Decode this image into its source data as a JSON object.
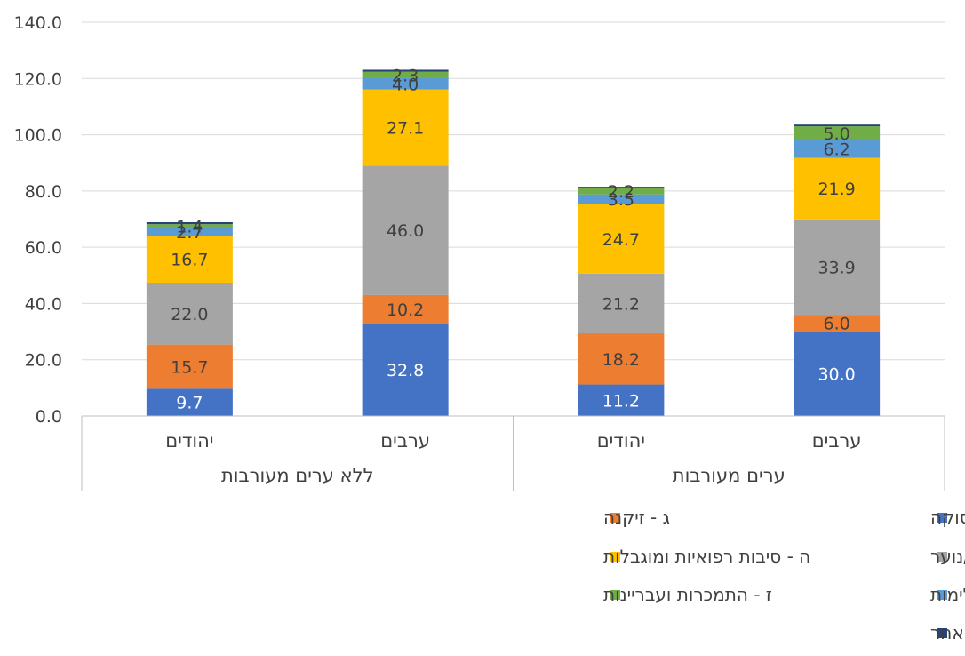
{
  "chart_data": {
    "type": "bar",
    "stacked": true,
    "title": "",
    "xlabel": "",
    "ylabel": "",
    "ylim": [
      0,
      140
    ],
    "ytick_step": 20,
    "ytick_labels": [
      "0.0",
      "20.0",
      "40.0",
      "60.0",
      "80.0",
      "100.0",
      "120.0",
      "140.0"
    ],
    "grid": true,
    "legend_placement": "bottom",
    "groups": [
      {
        "name": "ללא ערים מעורבות",
        "categories": [
          "יהודים",
          "ערבים"
        ]
      },
      {
        "name": "ערים מעורבות",
        "categories": [
          "יהודים",
          "ערבים"
        ]
      }
    ],
    "categories": [
      "יהודים",
      "ערבים",
      "יהודים",
      "ערבים"
    ],
    "series": [
      {
        "name": "ב - עוני, קשיי הכנסה ותעסוקה",
        "color": "#4472C4",
        "values": [
          9.7,
          32.8,
          11.2,
          30.0
        ],
        "labels": [
          "9.7",
          "32.8",
          "11.2",
          "30.0"
        ],
        "label_color": "#ffffff"
      },
      {
        "name": "ג - זיקנה",
        "color": "#ED7D31",
        "values": [
          15.7,
          10.2,
          18.2,
          6.0
        ],
        "labels": [
          "15.7",
          "10.2",
          "18.2",
          "6.0"
        ],
        "label_color": "#404040"
      },
      {
        "name": "ד - תפקוד לקוי של הורים או של ילדים/נוער",
        "color": "#A5A5A5",
        "values": [
          22.0,
          46.0,
          21.2,
          33.9
        ],
        "labels": [
          "22.0",
          "46.0",
          "21.2",
          "33.9"
        ],
        "label_color": "#404040"
      },
      {
        "name": "ה - סיבות רפואיות ומוגבלות",
        "color": "#FFC000",
        "values": [
          16.7,
          27.1,
          24.7,
          21.9
        ],
        "labels": [
          "16.7",
          "27.1",
          "24.7",
          "21.9"
        ],
        "label_color": "#404040"
      },
      {
        "name": "ו - אלימות",
        "color": "#5B9BD5",
        "values": [
          2.7,
          4.0,
          3.5,
          6.2
        ],
        "labels": [
          "2.7",
          "4.0",
          "3.5",
          "6.2"
        ],
        "label_color": "#404040"
      },
      {
        "name": "ז - התמכרות ועבריינות",
        "color": "#70AD47",
        "values": [
          1.4,
          2.3,
          2.2,
          5.0
        ],
        "labels": [
          "1.4",
          "2.3",
          "2.2",
          "5.0"
        ],
        "label_color": "#404040"
      },
      {
        "name": "ט - בבדיקה, אחר",
        "color": "#264478",
        "values": [
          0.7,
          0.7,
          0.5,
          0.6
        ],
        "labels": [
          "",
          "",
          "",
          ""
        ],
        "label_color": "#404040"
      }
    ]
  }
}
